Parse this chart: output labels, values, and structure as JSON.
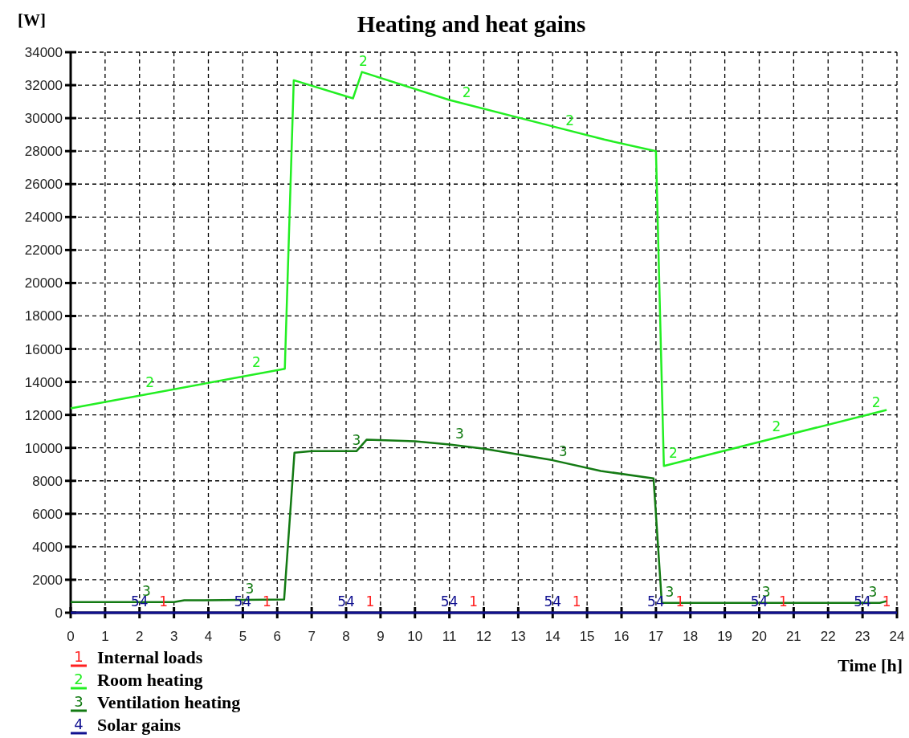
{
  "chart_data": {
    "type": "line",
    "title": "Heating and heat gains",
    "ylabel": "[W]",
    "xlabel": "Time [h]",
    "xlim": [
      0,
      24
    ],
    "xticks": [
      0,
      1,
      2,
      3,
      4,
      5,
      6,
      7,
      8,
      9,
      10,
      11,
      12,
      13,
      14,
      15,
      16,
      17,
      18,
      19,
      20,
      21,
      22,
      23,
      24
    ],
    "ylim": [
      0,
      34000
    ],
    "yticks": [
      0,
      2000,
      4000,
      6000,
      8000,
      10000,
      12000,
      14000,
      16000,
      18000,
      20000,
      22000,
      24000,
      26000,
      28000,
      30000,
      32000,
      34000
    ],
    "grid": true,
    "legend": "bottom left",
    "line_style": "solid",
    "annotations": [
      "1",
      "2",
      "3",
      "4",
      {
        "text": "2",
        "x": 2.3,
        "y": 13300
      },
      {
        "text": "2",
        "x": 5.4,
        "y": 14500
      },
      {
        "text": "2",
        "x": 8.5,
        "y": 32800
      },
      {
        "text": "2",
        "x": 11.5,
        "y": 30900
      },
      {
        "text": "2",
        "x": 14.5,
        "y": 29200
      },
      {
        "text": "2",
        "x": 17.5,
        "y": 9000
      },
      {
        "text": "2",
        "x": 20.5,
        "y": 10600
      },
      {
        "text": "2",
        "x": 23.4,
        "y": 12100
      },
      {
        "text": "3",
        "x": 2.2,
        "y": 650
      },
      {
        "text": "3",
        "x": 5.2,
        "y": 800
      },
      {
        "text": "3",
        "x": 8.3,
        "y": 9800
      },
      {
        "text": "3",
        "x": 11.3,
        "y": 10200
      },
      {
        "text": "3",
        "x": 14.3,
        "y": 9100
      },
      {
        "text": "3",
        "x": 17.4,
        "y": 600
      },
      {
        "text": "3",
        "x": 20.2,
        "y": 600
      },
      {
        "text": "3",
        "x": 23.3,
        "y": 600
      },
      {
        "text": "54",
        "x": 2,
        "y": 0
      },
      {
        "text": "54",
        "x": 5,
        "y": 0
      },
      {
        "text": "54",
        "x": 8,
        "y": 0
      },
      {
        "text": "54",
        "x": 11,
        "y": 0
      },
      {
        "text": "54",
        "x": 14,
        "y": 0
      },
      {
        "text": "54",
        "x": 17,
        "y": 0
      },
      {
        "text": "54",
        "x": 20,
        "y": 0
      },
      {
        "text": "54",
        "x": 23,
        "y": 0
      },
      {
        "text": "1",
        "x": 2.7,
        "y": 0
      },
      {
        "text": "1",
        "x": 5.7,
        "y": 0
      },
      {
        "text": "1",
        "x": 8.7,
        "y": 0
      },
      {
        "text": "1",
        "x": 11.7,
        "y": 0
      },
      {
        "text": "1",
        "x": 14.7,
        "y": 0
      },
      {
        "text": "1",
        "x": 17.7,
        "y": 0
      },
      {
        "text": "1",
        "x": 20.7,
        "y": 0
      },
      {
        "text": "1",
        "x": 23.7,
        "y": 0
      }
    ],
    "series": [
      {
        "name": "Internal loads",
        "color": "#ff2020"
      },
      {
        "name": "Room heating",
        "color": "#22ee22",
        "x": [
          0,
          6.22,
          6.48,
          8.2,
          8.46,
          11,
          14,
          15.5,
          17,
          17.23,
          23.7
        ],
        "values": [
          12400,
          14800,
          32300,
          31200,
          32800,
          31100,
          29500,
          28700,
          28000,
          8900,
          12300
        ]
      },
      {
        "name": "Ventilation heating",
        "color": "#137a13",
        "x": [
          0,
          3,
          3.3,
          6.2,
          6.5,
          7,
          8.3,
          8.6,
          10,
          11,
          12,
          14,
          15.4,
          16.93,
          17.17,
          23.5,
          23.7
        ],
        "values": [
          650,
          650,
          750,
          800,
          9700,
          9800,
          9800,
          10500,
          10400,
          10200,
          9950,
          9250,
          8600,
          8150,
          600,
          600,
          700
        ]
      },
      {
        "name": "Solar gains",
        "color": "#101090",
        "x": [
          0,
          24
        ],
        "values": [
          0,
          0
        ]
      }
    ]
  }
}
